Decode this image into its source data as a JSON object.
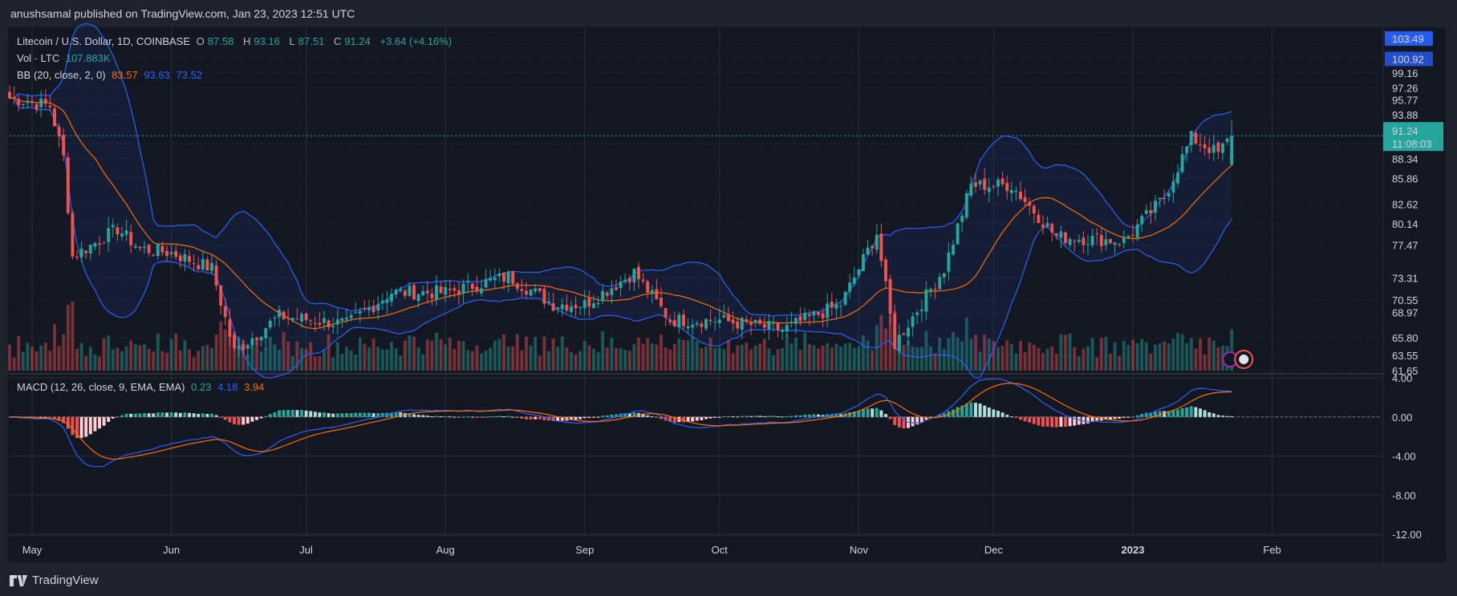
{
  "header": {
    "published_by": "anushsamal published on TradingView.com, Jan 23, 2023 12:51 UTC"
  },
  "legend": {
    "main": {
      "symbol": "Litecoin / U.S. Dollar, 1D, COINBASE",
      "o_label": "O",
      "o_value": "87.58",
      "h_label": "H",
      "h_value": "93.16",
      "l_label": "L",
      "l_value": "87.51",
      "c_label": "C",
      "c_value": "91.24",
      "change": "+3.64 (+4.16%)"
    },
    "volume": {
      "label": "Vol · LTC",
      "value": "107.883K"
    },
    "bb": {
      "label": "BB (20, close, 2, 0)",
      "basis": "83.57",
      "upper": "93.63",
      "lower": "73.52"
    },
    "macd": {
      "label": "MACD (12, 26, close, 9, EMA, EMA)",
      "hist": "0.23",
      "macd": "4.18",
      "signal": "3.94"
    }
  },
  "price_axis": {
    "currency": "USD",
    "ticks": [
      "103.49",
      "100.92",
      "99.16",
      "97.26",
      "95.77",
      "93.88",
      "90.22",
      "88.34",
      "85.86",
      "82.62",
      "80.14",
      "77.47",
      "73.31",
      "70.55",
      "68.97",
      "65.80",
      "63.55",
      "61.65"
    ],
    "last_price": "91.24",
    "countdown": "11:08:03"
  },
  "macd_axis": {
    "ticks": [
      "4.00",
      "0.00",
      "-4.00",
      "-8.00",
      "-12.00"
    ]
  },
  "time_axis": {
    "labels": [
      "May",
      "Jun",
      "Jul",
      "Aug",
      "Sep",
      "Oct",
      "Nov",
      "Dec",
      "2023",
      "Feb"
    ]
  },
  "footer": {
    "brand": "TradingView"
  },
  "colors": {
    "up": "#26a69a",
    "down": "#ef5350",
    "bb_band": "#2962ff",
    "bb_basis": "#ff6d00",
    "macd_line": "#2962ff",
    "signal_line": "#ff6d00",
    "background": "#131722"
  },
  "chart_data": {
    "type": "candlestick",
    "title": "Litecoin / U.S. Dollar, 1D, COINBASE",
    "ylabel": "USD",
    "x_range": [
      "2022-04-26",
      "2023-01-23"
    ],
    "ylim": [
      61.65,
      103.49
    ],
    "candles_approx": [
      {
        "date": "2022-04-26",
        "close": 96.0
      },
      {
        "date": "2022-05-05",
        "close": 95.0
      },
      {
        "date": "2022-05-08",
        "close": 88.5
      },
      {
        "date": "2022-05-10",
        "close": 76.0
      },
      {
        "date": "2022-05-20",
        "close": 79.5
      },
      {
        "date": "2022-05-25",
        "close": 77.0
      },
      {
        "date": "2022-06-01",
        "close": 76.5
      },
      {
        "date": "2022-06-10",
        "close": 74.5
      },
      {
        "date": "2022-06-15",
        "close": 64.0
      },
      {
        "date": "2022-06-25",
        "close": 68.5
      },
      {
        "date": "2022-07-10",
        "close": 67.5
      },
      {
        "date": "2022-07-20",
        "close": 71.5
      },
      {
        "date": "2022-08-01",
        "close": 71.5
      },
      {
        "date": "2022-08-15",
        "close": 73.5
      },
      {
        "date": "2022-08-25",
        "close": 70.0
      },
      {
        "date": "2022-09-01",
        "close": 70.0
      },
      {
        "date": "2022-09-12",
        "close": 74.0
      },
      {
        "date": "2022-09-20",
        "close": 68.0
      },
      {
        "date": "2022-10-01",
        "close": 68.0
      },
      {
        "date": "2022-10-15",
        "close": 66.8
      },
      {
        "date": "2022-10-28",
        "close": 70.0
      },
      {
        "date": "2022-11-05",
        "close": 79.0
      },
      {
        "date": "2022-11-09",
        "close": 65.0
      },
      {
        "date": "2022-11-20",
        "close": 74.5
      },
      {
        "date": "2022-11-26",
        "close": 85.0
      },
      {
        "date": "2022-12-05",
        "close": 85.0
      },
      {
        "date": "2022-12-15",
        "close": 78.5
      },
      {
        "date": "2022-12-30",
        "close": 78.0
      },
      {
        "date": "2023-01-08",
        "close": 83.5
      },
      {
        "date": "2023-01-14",
        "close": 91.0
      },
      {
        "date": "2023-01-20",
        "close": 89.0
      },
      {
        "date": "2023-01-23",
        "open": 87.58,
        "high": 93.16,
        "low": 87.51,
        "close": 91.24
      }
    ],
    "last_bar": {
      "open": 87.58,
      "high": 93.16,
      "low": 87.51,
      "close": 91.24,
      "change": 3.64,
      "change_pct": 4.16
    },
    "indicators": {
      "bb": {
        "length": 20,
        "mult": 2,
        "basis": 83.57,
        "upper": 93.63,
        "lower": 73.52
      },
      "macd": {
        "fast": 12,
        "slow": 26,
        "signal": 9,
        "macd": 4.18,
        "signal_value": 3.94,
        "hist": 0.23,
        "ylim": [
          -12,
          4
        ]
      },
      "volume_last": "107.883K"
    },
    "grid": true
  }
}
